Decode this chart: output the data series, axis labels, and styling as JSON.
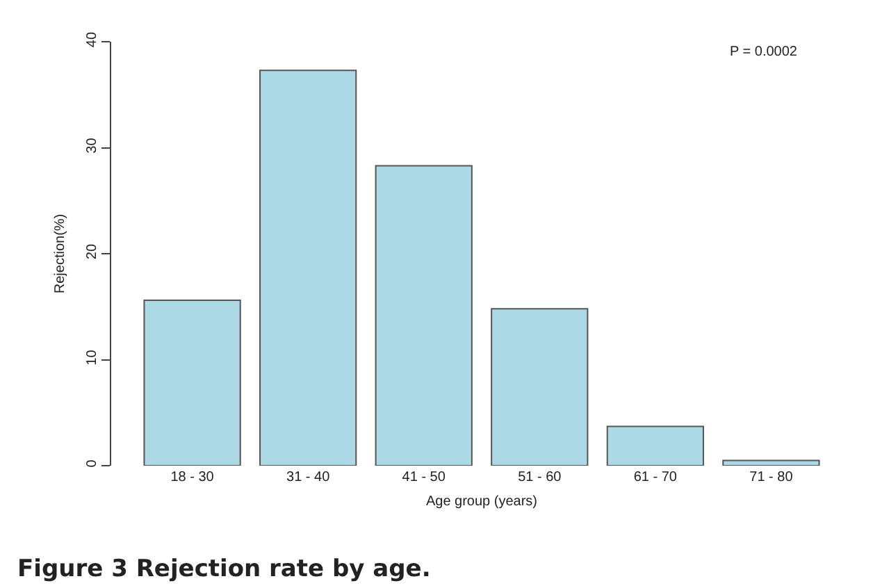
{
  "chart_data": {
    "type": "bar",
    "title": "Figure 3 Rejection rate by age.",
    "xlabel": "Age group (years)",
    "ylabel": "Rejection(%)",
    "categories": [
      "18 - 30",
      "31 - 40",
      "41 - 50",
      "51 - 60",
      "61 - 70",
      "71 - 80"
    ],
    "values": [
      15.6,
      37.3,
      28.3,
      14.8,
      3.7,
      0.5
    ],
    "color": "#add8e6",
    "ylim": [
      0,
      40
    ],
    "yticks": [
      0,
      10,
      20,
      30,
      40
    ],
    "grid": false,
    "legend": false,
    "annotations": [
      "P = 0.0002"
    ]
  }
}
